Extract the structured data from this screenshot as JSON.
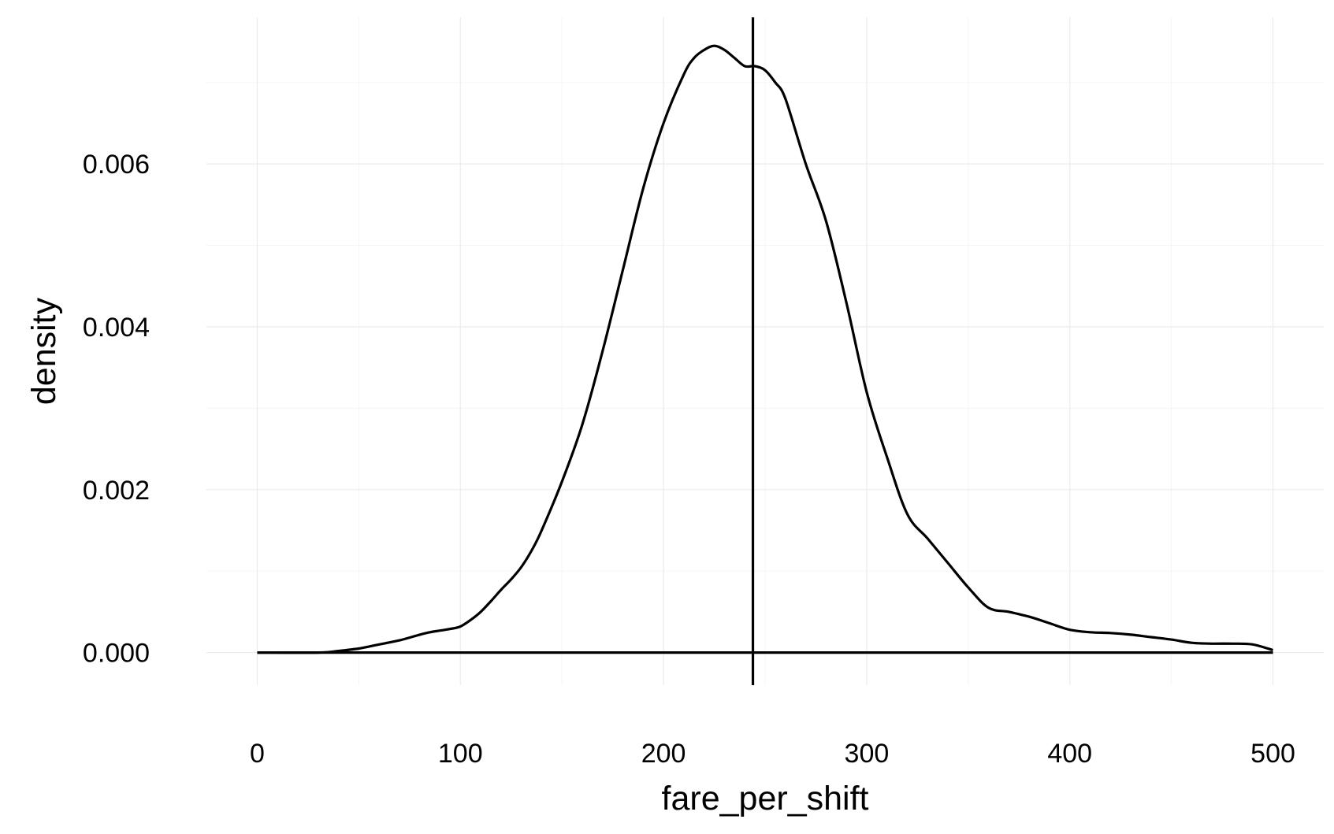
{
  "chart_data": {
    "type": "line",
    "subtype": "density",
    "title": "",
    "xlabel": "fare_per_shift",
    "ylabel": "density",
    "xlim": [
      -25,
      525
    ],
    "ylim": [
      -0.0004,
      0.0078
    ],
    "x_ticks": [
      0,
      100,
      200,
      300,
      400,
      500
    ],
    "x_tick_labels": [
      "0",
      "100",
      "200",
      "300",
      "400",
      "500"
    ],
    "y_ticks": [
      0.0,
      0.002,
      0.004,
      0.006
    ],
    "y_tick_labels": [
      "0.000",
      "0.002",
      "0.004",
      "0.006"
    ],
    "x_minor_ticks": [
      50,
      150,
      250,
      350,
      450
    ],
    "y_minor_ticks": [
      0.001,
      0.003,
      0.005,
      0.007
    ],
    "grid": true,
    "legend": "none",
    "reference_line": {
      "orientation": "vertical",
      "x": 244
    },
    "series": [
      {
        "x": [
          0,
          30,
          40,
          50,
          60,
          70,
          80,
          85,
          90,
          95,
          100,
          105,
          110,
          115,
          120,
          125,
          130,
          135,
          140,
          150,
          160,
          170,
          180,
          190,
          200,
          210,
          215,
          220,
          225,
          230,
          235,
          240,
          245,
          250,
          255,
          260,
          270,
          280,
          290,
          300,
          310,
          320,
          330,
          340,
          350,
          360,
          370,
          380,
          390,
          400,
          410,
          420,
          430,
          440,
          450,
          460,
          470,
          480,
          490,
          500
        ],
        "y": [
          0.0,
          0.0,
          2e-05,
          5e-05,
          0.0001,
          0.00015,
          0.00022,
          0.00025,
          0.00027,
          0.00029,
          0.00032,
          0.0004,
          0.0005,
          0.00063,
          0.00077,
          0.0009,
          0.00105,
          0.00125,
          0.0015,
          0.0021,
          0.0028,
          0.0037,
          0.0047,
          0.0057,
          0.0065,
          0.0071,
          0.0073,
          0.0074,
          0.00745,
          0.0074,
          0.0073,
          0.0072,
          0.0072,
          0.00715,
          0.007,
          0.0068,
          0.006,
          0.0053,
          0.0043,
          0.0032,
          0.0024,
          0.0017,
          0.0014,
          0.0011,
          0.0008,
          0.00055,
          0.0005,
          0.00044,
          0.00036,
          0.00028,
          0.00025,
          0.00024,
          0.00022,
          0.00019,
          0.00016,
          0.00012,
          0.00011,
          0.00011,
          0.0001,
          3e-05
        ]
      }
    ]
  }
}
